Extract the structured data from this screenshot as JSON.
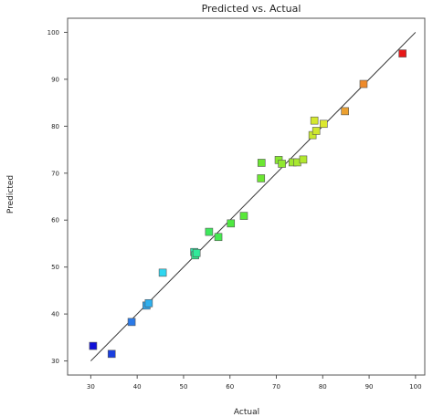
{
  "chart_data": {
    "type": "scatter",
    "title": "Predicted vs. Actual",
    "xlabel": "Actual",
    "ylabel": "Predicted",
    "xlim": [
      25,
      102
    ],
    "ylim": [
      27,
      103
    ],
    "xticks": [
      30,
      40,
      50,
      60,
      70,
      80,
      90,
      100
    ],
    "yticks": [
      30,
      40,
      50,
      60,
      70,
      80,
      90,
      100
    ],
    "grid": false,
    "reference_line": {
      "from": [
        30,
        30
      ],
      "to": [
        100,
        100
      ]
    },
    "points": [
      {
        "x": 30.5,
        "y": 33.2,
        "color": "#1010d8"
      },
      {
        "x": 34.5,
        "y": 31.5,
        "color": "#1a3fe0"
      },
      {
        "x": 38.8,
        "y": 38.3,
        "color": "#2a7ae8"
      },
      {
        "x": 42.0,
        "y": 41.8,
        "color": "#2fa6ee"
      },
      {
        "x": 42.5,
        "y": 42.3,
        "color": "#2fb0ee"
      },
      {
        "x": 45.5,
        "y": 48.8,
        "color": "#2fd6f0"
      },
      {
        "x": 52.3,
        "y": 53.2,
        "color": "#29e8a8"
      },
      {
        "x": 52.5,
        "y": 52.5,
        "color": "#2ee68a"
      },
      {
        "x": 52.8,
        "y": 53.0,
        "color": "#31e99a"
      },
      {
        "x": 55.5,
        "y": 57.5,
        "color": "#3ee85c"
      },
      {
        "x": 57.5,
        "y": 56.4,
        "color": "#46ea50"
      },
      {
        "x": 60.2,
        "y": 59.3,
        "color": "#4ee840"
      },
      {
        "x": 63.0,
        "y": 60.9,
        "color": "#58e838"
      },
      {
        "x": 66.8,
        "y": 72.2,
        "color": "#6ce632"
      },
      {
        "x": 66.7,
        "y": 68.9,
        "color": "#6ce632"
      },
      {
        "x": 70.5,
        "y": 72.8,
        "color": "#88e830"
      },
      {
        "x": 71.2,
        "y": 72.0,
        "color": "#90e830"
      },
      {
        "x": 73.5,
        "y": 72.3,
        "color": "#a0e82e"
      },
      {
        "x": 74.5,
        "y": 72.3,
        "color": "#a8e82e"
      },
      {
        "x": 75.8,
        "y": 72.9,
        "color": "#b2e82e"
      },
      {
        "x": 77.8,
        "y": 78.1,
        "color": "#c8e82e"
      },
      {
        "x": 78.2,
        "y": 81.2,
        "color": "#d4e82e"
      },
      {
        "x": 78.6,
        "y": 79.0,
        "color": "#d0e82e"
      },
      {
        "x": 80.2,
        "y": 80.5,
        "color": "#dce82e"
      },
      {
        "x": 84.8,
        "y": 83.2,
        "color": "#eba030"
      },
      {
        "x": 88.8,
        "y": 89.0,
        "color": "#ee8a2a"
      },
      {
        "x": 97.2,
        "y": 95.5,
        "color": "#e81818"
      }
    ]
  }
}
